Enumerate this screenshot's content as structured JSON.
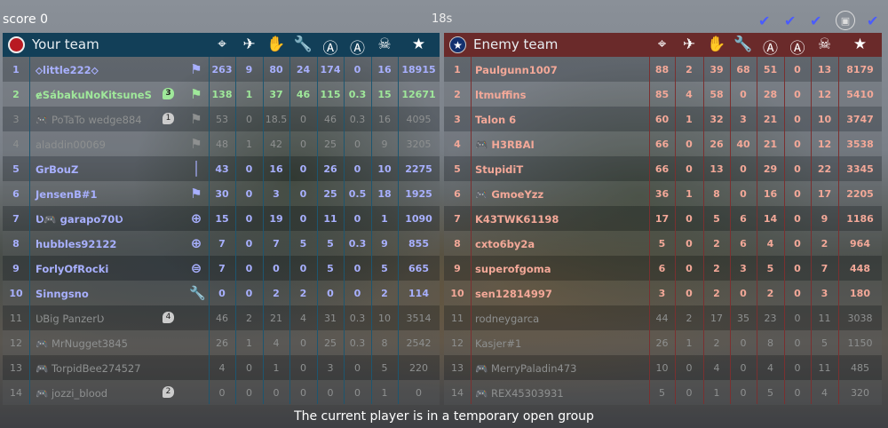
{
  "top": {
    "score": "score 0",
    "timer": "18s",
    "checks": [
      "check-icon",
      "check-icon",
      "check-icon",
      "squad-icon",
      "check-icon"
    ]
  },
  "columns": [
    "kills-icon",
    "vehicle-kills-icon",
    "assists-icon",
    "repairs-icon",
    "captures-icon",
    "capture-assists-icon",
    "deaths-icon",
    "score-icon"
  ],
  "your_team": {
    "name": "Your team",
    "color": "#123f58",
    "rows": [
      {
        "rank": "1",
        "name": "⬦little222⬦",
        "role": "flag-icon",
        "badge": "",
        "stats": [
          "263",
          "9",
          "80",
          "24",
          "174",
          "0",
          "16",
          "18915"
        ],
        "state": ""
      },
      {
        "rank": "2",
        "name": "ɇSábakuNoKitsuneS",
        "role": "flag-icon",
        "badge": "3",
        "stats": [
          "138",
          "1",
          "37",
          "46",
          "115",
          "0.3",
          "15",
          "12671"
        ],
        "state": "me"
      },
      {
        "rank": "3",
        "name": "🎮 PoTaTo wedge884",
        "role": "flag-icon",
        "badge": "1",
        "stats": [
          "53",
          "0",
          "18.5",
          "0",
          "46",
          "0.3",
          "16",
          "4095"
        ],
        "state": "dim"
      },
      {
        "rank": "4",
        "name": "aladdin00069",
        "role": "flag-icon",
        "badge": "",
        "stats": [
          "48",
          "1",
          "42",
          "0",
          "25",
          "0",
          "9",
          "3205"
        ],
        "state": "dim"
      },
      {
        "rank": "5",
        "name": "GrBouZ",
        "role": "rifle-icon",
        "badge": "",
        "stats": [
          "43",
          "0",
          "16",
          "0",
          "26",
          "0",
          "10",
          "2275"
        ],
        "state": ""
      },
      {
        "rank": "6",
        "name": "JensenB#1",
        "role": "flag-icon",
        "badge": "",
        "stats": [
          "30",
          "0",
          "3",
          "0",
          "25",
          "0.5",
          "18",
          "1925"
        ],
        "state": ""
      },
      {
        "rank": "7",
        "name": "Ʋ🎮 garapo70Ʋ",
        "role": "crosshair-icon",
        "badge": "",
        "stats": [
          "15",
          "0",
          "19",
          "0",
          "11",
          "0",
          "1",
          "1090"
        ],
        "state": ""
      },
      {
        "rank": "8",
        "name": "hubbles92122",
        "role": "crosshair-icon",
        "badge": "",
        "stats": [
          "7",
          "0",
          "7",
          "5",
          "5",
          "0.3",
          "9",
          "855"
        ],
        "state": ""
      },
      {
        "rank": "9",
        "name": "ForlyOfRocki",
        "role": "steering-icon",
        "badge": "",
        "stats": [
          "7",
          "0",
          "0",
          "0",
          "5",
          "0",
          "5",
          "665"
        ],
        "state": ""
      },
      {
        "rank": "10",
        "name": "Sinngsno",
        "role": "wrench-icon",
        "badge": "",
        "stats": [
          "0",
          "0",
          "2",
          "2",
          "0",
          "0",
          "2",
          "114"
        ],
        "state": ""
      },
      {
        "rank": "11",
        "name": "ƲBig PanzerƲ",
        "role": "",
        "badge": "4",
        "stats": [
          "46",
          "2",
          "21",
          "4",
          "31",
          "0.3",
          "10",
          "3514"
        ],
        "state": "dim"
      },
      {
        "rank": "12",
        "name": "🎮 MrNugget3845",
        "role": "",
        "badge": "",
        "stats": [
          "26",
          "1",
          "4",
          "0",
          "25",
          "0.3",
          "8",
          "2542"
        ],
        "state": "dim"
      },
      {
        "rank": "13",
        "name": "🎮 TorpidBee274527",
        "role": "",
        "badge": "",
        "stats": [
          "4",
          "0",
          "1",
          "0",
          "3",
          "0",
          "5",
          "220"
        ],
        "state": "dim"
      },
      {
        "rank": "14",
        "name": "🎮 jozzi_blood",
        "role": "",
        "badge": "2",
        "stats": [
          "0",
          "0",
          "0",
          "0",
          "0",
          "0",
          "1",
          "0"
        ],
        "state": "dim"
      }
    ]
  },
  "enemy_team": {
    "name": "Enemy team",
    "color": "#6a2a2a",
    "rows": [
      {
        "rank": "1",
        "name": "Paulgunn1007",
        "stats": [
          "88",
          "2",
          "39",
          "68",
          "51",
          "0",
          "13",
          "8179"
        ],
        "state": ""
      },
      {
        "rank": "2",
        "name": "ltmuffins",
        "stats": [
          "85",
          "4",
          "58",
          "0",
          "28",
          "0",
          "12",
          "5410"
        ],
        "state": ""
      },
      {
        "rank": "3",
        "name": "Talon 6",
        "stats": [
          "60",
          "1",
          "32",
          "3",
          "21",
          "0",
          "10",
          "3747"
        ],
        "state": ""
      },
      {
        "rank": "4",
        "name": "🎮 H3RBAI",
        "stats": [
          "66",
          "0",
          "26",
          "40",
          "21",
          "0",
          "12",
          "3538"
        ],
        "state": ""
      },
      {
        "rank": "5",
        "name": "StupidiT",
        "stats": [
          "66",
          "0",
          "13",
          "0",
          "29",
          "0",
          "22",
          "3345"
        ],
        "state": ""
      },
      {
        "rank": "6",
        "name": "🎮 GmoeYzz",
        "stats": [
          "36",
          "1",
          "8",
          "0",
          "16",
          "0",
          "17",
          "2205"
        ],
        "state": ""
      },
      {
        "rank": "7",
        "name": "K43TWK61198",
        "stats": [
          "17",
          "0",
          "5",
          "6",
          "14",
          "0",
          "9",
          "1186"
        ],
        "state": ""
      },
      {
        "rank": "8",
        "name": "cxto6by2a",
        "stats": [
          "5",
          "0",
          "2",
          "6",
          "4",
          "0",
          "2",
          "964"
        ],
        "state": ""
      },
      {
        "rank": "9",
        "name": "superofgoma",
        "stats": [
          "6",
          "0",
          "2",
          "3",
          "5",
          "0",
          "7",
          "448"
        ],
        "state": ""
      },
      {
        "rank": "10",
        "name": "sen12814997",
        "stats": [
          "3",
          "0",
          "2",
          "0",
          "2",
          "0",
          "3",
          "180"
        ],
        "state": ""
      },
      {
        "rank": "11",
        "name": "rodneygarca",
        "stats": [
          "44",
          "2",
          "17",
          "35",
          "23",
          "0",
          "11",
          "3038"
        ],
        "state": "dim"
      },
      {
        "rank": "12",
        "name": "Kasjer#1",
        "stats": [
          "26",
          "1",
          "2",
          "0",
          "8",
          "0",
          "5",
          "1150"
        ],
        "state": "dim"
      },
      {
        "rank": "13",
        "name": "🎮 MerryPaladin473",
        "stats": [
          "10",
          "0",
          "4",
          "0",
          "4",
          "0",
          "11",
          "485"
        ],
        "state": "dim"
      },
      {
        "rank": "14",
        "name": "🎮 REX45303931",
        "stats": [
          "5",
          "0",
          "1",
          "0",
          "5",
          "0",
          "4",
          "320"
        ],
        "state": "dim"
      }
    ]
  },
  "footer": "The current player is in a temporary open group"
}
